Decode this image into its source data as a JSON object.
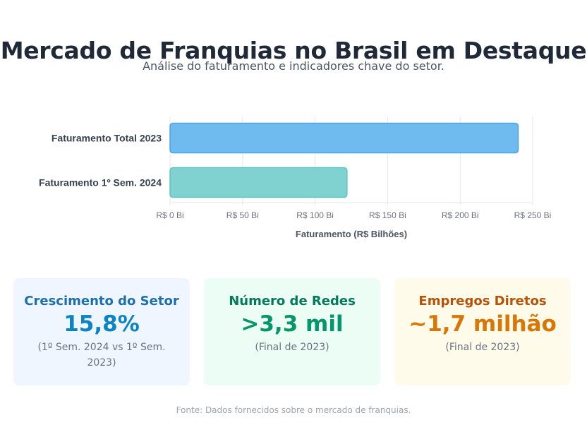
{
  "header": {
    "title": "Mercado de Franquias no Brasil em Destaque",
    "subtitle": "Análise do faturamento e indicadores chave do setor."
  },
  "chart_data": {
    "type": "bar",
    "orientation": "horizontal",
    "categories": [
      "Faturamento Total 2023",
      "Faturamento 1º Sem. 2024"
    ],
    "values": [
      240,
      122
    ],
    "colors": [
      "#6fbaee",
      "#80d2d0"
    ],
    "border_colors": [
      "#4aa5e8",
      "#5cc5c0"
    ],
    "xlabel": "Faturamento (R$ Bilhões)",
    "ylabel": "",
    "xlim": [
      0,
      250
    ],
    "xticks": [
      0,
      50,
      100,
      150,
      200,
      250
    ],
    "xtick_labels": [
      "R$ 0 Bi",
      "R$ 50 Bi",
      "R$ 100 Bi",
      "R$ 150 Bi",
      "R$ 200 Bi",
      "R$ 250 Bi"
    ],
    "grid": true,
    "legend": "none"
  },
  "cards": [
    {
      "title": "Crescimento do Setor",
      "value": "15,8%",
      "subtitle": "(1º Sem. 2024 vs 1º Sem. 2023)"
    },
    {
      "title": "Número de Redes",
      "value": ">3,3 mil",
      "subtitle": "(Final de 2023)"
    },
    {
      "title": "Empregos Diretos",
      "value": "~1,7 milhão",
      "subtitle": "(Final de 2023)"
    }
  ],
  "footer": {
    "source": "Fonte: Dados fornecidos sobre o mercado de franquias."
  }
}
